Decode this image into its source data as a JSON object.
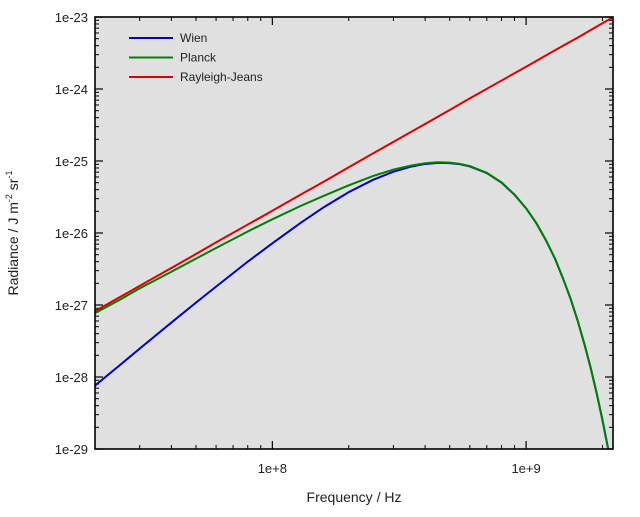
{
  "chart_data": {
    "type": "line",
    "title": "",
    "xlabel": "Frequency / Hz",
    "ylabel": {
      "main": "Radiance / J m",
      "sup1": "-2",
      "mid": " sr",
      "sup2": "-1"
    },
    "x_scale": "log",
    "y_scale": "log",
    "xlim": [
      20000000,
      2200000000
    ],
    "ylim": [
      1e-29,
      1e-23
    ],
    "x_ticks": [
      {
        "value": 100000000,
        "label": "1e+8"
      },
      {
        "value": 1000000000,
        "label": "1e+9"
      }
    ],
    "y_ticks": [
      {
        "value": 1e-23,
        "label": "1e-23"
      },
      {
        "value": 1e-24,
        "label": "1e-24"
      },
      {
        "value": 1e-25,
        "label": "1e-25"
      },
      {
        "value": 1e-26,
        "label": "1e-26"
      },
      {
        "value": 1e-27,
        "label": "1e-27"
      },
      {
        "value": 1e-28,
        "label": "1e-28"
      },
      {
        "value": 1e-29,
        "label": "1e-29"
      }
    ],
    "legend_position": "top-left",
    "grid": false,
    "plot_background": "#e0e0e0",
    "series": [
      {
        "name": "Wien",
        "color": "#0000cc",
        "x": [
          20000000,
          25000000,
          30000000,
          40000000,
          50000000,
          60000000,
          80000000,
          100000000,
          130000000,
          160000000,
          200000000,
          250000000,
          300000000,
          350000000,
          400000000,
          450000000,
          500000000,
          550000000,
          600000000,
          700000000,
          800000000,
          900000000,
          1000000000,
          1100000000,
          1200000000,
          1300000000,
          1400000000,
          1500000000,
          1600000000,
          1700000000,
          1800000000,
          1900000000,
          2000000000,
          2100000000,
          2200000000
        ],
        "y": [
          7.6e-29,
          1.45e-28,
          2.48e-28,
          5.7e-28,
          1.08e-27,
          1.8e-27,
          4e-27,
          7.2e-27,
          1.4e-26,
          2.3e-26,
          3.7e-26,
          5.5e-26,
          7.1e-26,
          8.3e-26,
          9.1e-26,
          9.4e-26,
          9.35e-26,
          9e-26,
          8.4e-26,
          6.8e-26,
          5e-26,
          3.4e-26,
          2.2e-26,
          1.35e-26,
          7.8e-27,
          4.4e-27,
          2.3e-27,
          1.2e-27,
          5.9e-28,
          2.8e-28,
          1.3e-28,
          5.8e-29,
          2.5e-29,
          1.05e-29,
          4.3e-30
        ]
      },
      {
        "name": "Planck",
        "color": "#008000",
        "x": [
          20000000,
          25000000,
          30000000,
          40000000,
          50000000,
          60000000,
          80000000,
          100000000,
          130000000,
          160000000,
          200000000,
          250000000,
          300000000,
          350000000,
          400000000,
          450000000,
          500000000,
          550000000,
          600000000,
          700000000,
          800000000,
          900000000,
          1000000000,
          1100000000,
          1200000000,
          1300000000,
          1400000000,
          1500000000,
          1600000000,
          1700000000,
          1800000000,
          1900000000,
          2000000000,
          2100000000,
          2200000000
        ],
        "y": [
          7.7e-28,
          1.18e-27,
          1.7e-27,
          2.9e-27,
          4.4e-27,
          6.2e-27,
          1.05e-26,
          1.55e-26,
          2.4e-26,
          3.3e-26,
          4.6e-26,
          6.2e-26,
          7.6e-26,
          8.6e-26,
          9.3e-26,
          9.6e-26,
          9.5e-26,
          9.1e-26,
          8.5e-26,
          6.85e-26,
          5.05e-26,
          3.42e-26,
          2.2e-26,
          1.35e-26,
          7.8e-27,
          4.4e-27,
          2.3e-27,
          1.2e-27,
          5.9e-28,
          2.8e-28,
          1.3e-28,
          5.8e-29,
          2.5e-29,
          1.05e-29,
          4.3e-30
        ]
      },
      {
        "name": "Rayleigh-Jeans",
        "color": "#dd0000",
        "x": [
          20000000,
          25000000,
          30000000,
          40000000,
          50000000,
          60000000,
          80000000,
          100000000,
          130000000,
          160000000,
          200000000,
          250000000,
          300000000,
          400000000,
          500000000,
          600000000,
          800000000,
          1000000000,
          1300000000,
          1600000000,
          2000000000,
          2200000000
        ],
        "y": [
          8.2e-28,
          1.28e-27,
          1.84e-27,
          3.27e-27,
          5.1e-27,
          7.4e-27,
          1.31e-26,
          2.04e-26,
          3.45e-26,
          5.2e-26,
          8.2e-26,
          1.28e-25,
          1.84e-25,
          3.27e-25,
          5.1e-25,
          7.4e-25,
          1.31e-24,
          2.04e-24,
          3.45e-24,
          5.2e-24,
          8.2e-24,
          9.9e-24
        ]
      }
    ]
  }
}
